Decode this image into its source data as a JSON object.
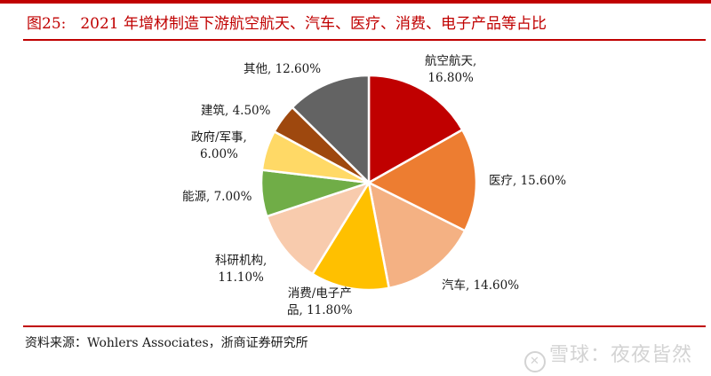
{
  "header": {
    "figure_label": "图25:",
    "title": "2021 年增材制造下游航空航天、汽车、医疗、消费、电子产品等占比"
  },
  "chart_data": {
    "type": "pie",
    "title": "2021 年增材制造下游航空航天、汽车、医疗、消费、电子产品等占比",
    "start_angle_deg": 0,
    "direction": "clockwise",
    "categories": [
      "航空航天",
      "医疗",
      "汽车",
      "消费/电子产品",
      "科研机构",
      "能源",
      "政府/军事",
      "建筑",
      "其他"
    ],
    "values": [
      16.8,
      15.6,
      14.6,
      11.8,
      11.1,
      7.0,
      6.0,
      4.5,
      12.6
    ],
    "colors": [
      "#c00000",
      "#ed7d31",
      "#f4b183",
      "#ffc000",
      "#f8cbad",
      "#70ad47",
      "#ffd966",
      "#9e480e",
      "#636363"
    ],
    "unit": "%",
    "legend": "none (data labels on slices)"
  },
  "labels": [
    {
      "line1": "航空航天,",
      "line2": "16.80%"
    },
    {
      "line1": "医疗, 15.60%",
      "line2": ""
    },
    {
      "line1": "汽车, 14.60%",
      "line2": ""
    },
    {
      "line1": "消费/电子产",
      "line2": "品, 11.80%"
    },
    {
      "line1": "科研机构,",
      "line2": "11.10%"
    },
    {
      "line1": "能源, 7.00%",
      "line2": ""
    },
    {
      "line1": "政府/军事,",
      "line2": "6.00%"
    },
    {
      "line1": "建筑, 4.50%",
      "line2": ""
    },
    {
      "line1": "其他, 12.60%",
      "line2": ""
    }
  ],
  "footer": {
    "source": "资料来源：Wohlers Associates，浙商证券研究所",
    "watermark": "雪球：夜夜皆然"
  }
}
